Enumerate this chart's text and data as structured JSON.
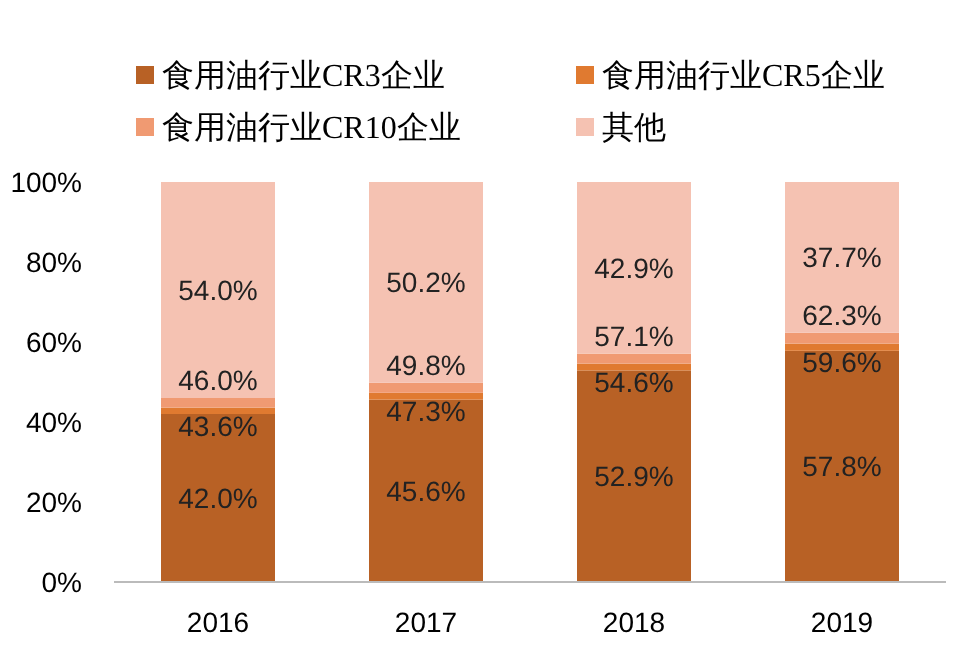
{
  "chart_data": {
    "type": "bar",
    "stacked": true,
    "categories": [
      "2016",
      "2017",
      "2018",
      "2019"
    ],
    "series": [
      {
        "name": "食用油行业CR3企业",
        "color": "#b86125",
        "values": [
          42.0,
          45.6,
          52.9,
          57.8
        ],
        "value_labels": [
          "42.0%",
          "45.6%",
          "52.9%",
          "57.8%"
        ]
      },
      {
        "name": "食用油行业CR5企业",
        "color": "#e07a30",
        "values": [
          1.6,
          1.7,
          1.7,
          1.8
        ]
      },
      {
        "name": "食用油行业CR10企业",
        "color": "#f09a72",
        "values": [
          2.4,
          2.5,
          2.5,
          2.7
        ]
      },
      {
        "name": "其他",
        "color": "#f5c2b2",
        "values": [
          54.0,
          50.2,
          42.9,
          37.7
        ],
        "value_labels": [
          "54.0%",
          "50.2%",
          "42.9%",
          "37.7%"
        ]
      }
    ],
    "annotations": [
      {
        "text": "43.6%",
        "x": "2016",
        "y": 43.6
      },
      {
        "text": "46.0%",
        "x": "2016",
        "y": 46.0
      },
      {
        "text": "47.3%",
        "x": "2017",
        "y": 47.3
      },
      {
        "text": "49.8%",
        "x": "2017",
        "y": 49.8
      },
      {
        "text": "54.6%",
        "x": "2018",
        "y": 54.6
      },
      {
        "text": "57.1%",
        "x": "2018",
        "y": 57.1
      },
      {
        "text": "59.6%",
        "x": "2019",
        "y": 59.6
      },
      {
        "text": "62.3%",
        "x": "2019",
        "y": 62.3
      }
    ],
    "ylim": [
      0,
      100
    ],
    "yticks": [
      {
        "value": 0,
        "label": "0%"
      },
      {
        "value": 20,
        "label": "20%"
      },
      {
        "value": 40,
        "label": "40%"
      },
      {
        "value": 60,
        "label": "60%"
      },
      {
        "value": 80,
        "label": "80%"
      },
      {
        "value": 100,
        "label": "100%"
      }
    ],
    "legend": "top"
  }
}
